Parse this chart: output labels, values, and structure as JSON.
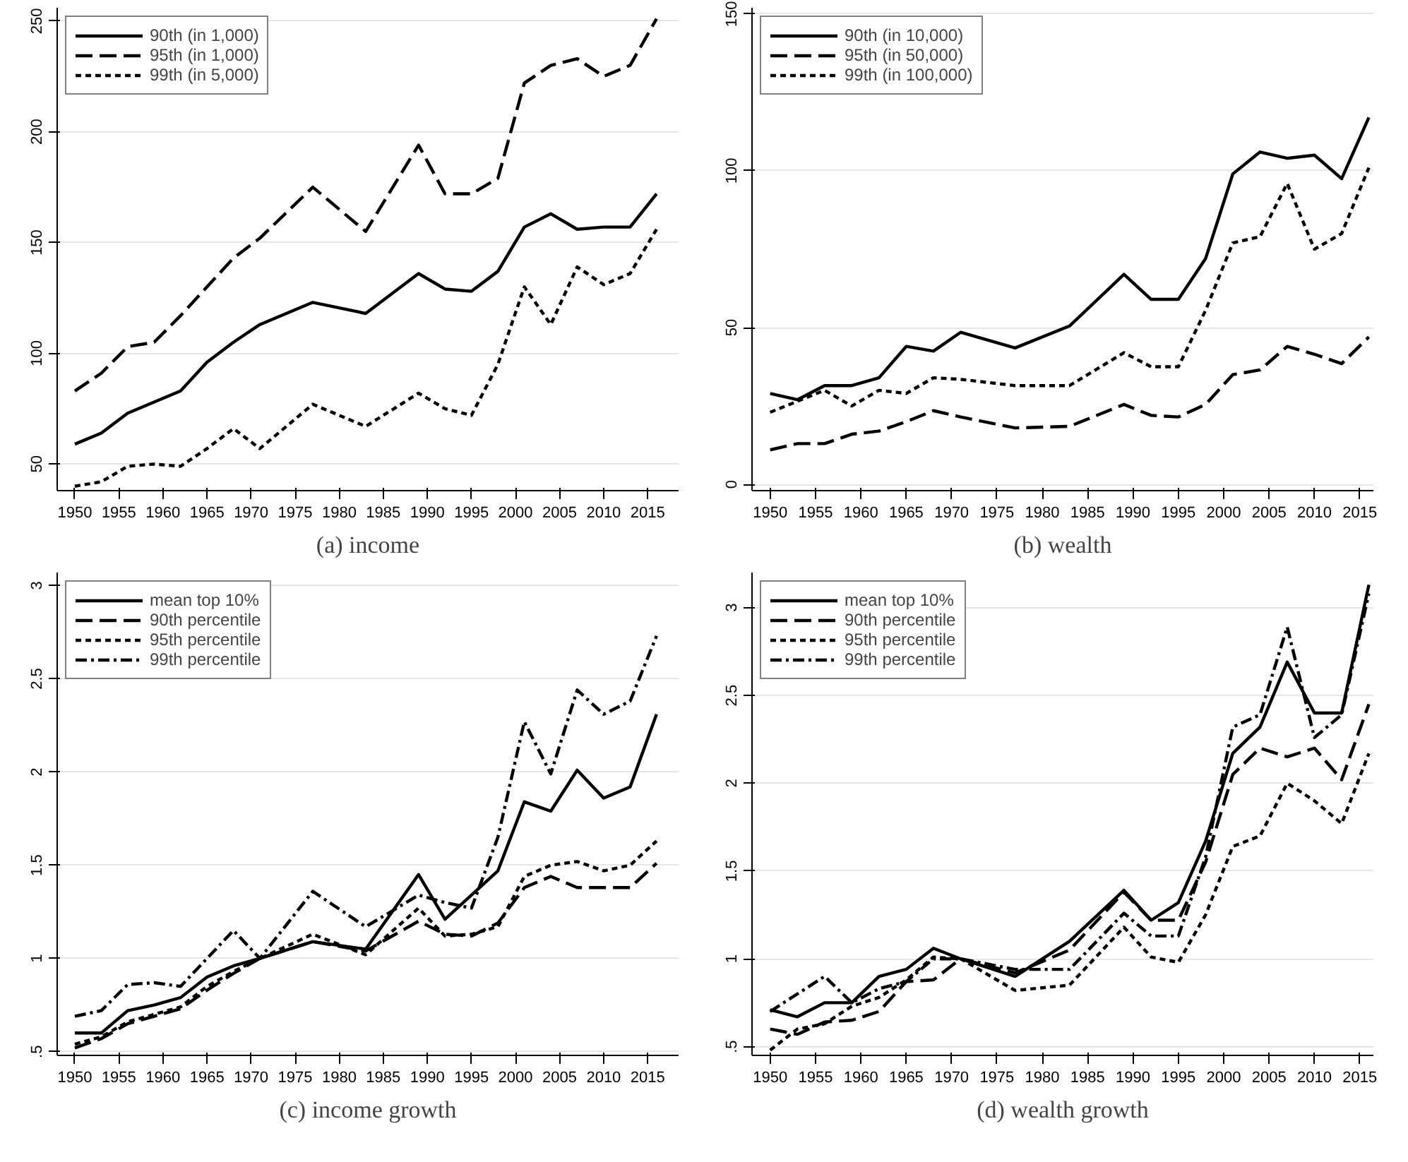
{
  "chart_data": [
    {
      "type": "line",
      "title": "(a) income",
      "x": [
        1950,
        1953,
        1956,
        1959,
        1962,
        1965,
        1968,
        1971,
        1977,
        1983,
        1989,
        1992,
        1995,
        1998,
        2001,
        2004,
        2007,
        2010,
        2013,
        2016
      ],
      "xlim": [
        1948,
        2018.5
      ],
      "xticks": [
        1950,
        1955,
        1960,
        1965,
        1970,
        1975,
        1980,
        1985,
        1990,
        1995,
        2000,
        2005,
        2010,
        2015
      ],
      "ylim": [
        38,
        256
      ],
      "yticks": [
        50,
        100,
        150,
        200,
        250
      ],
      "grid": "y",
      "legend": "top left",
      "series": [
        {
          "name": "90th (in 1,000)",
          "color": "#000000",
          "line_style": "solid",
          "values": [
            59,
            64,
            73,
            78,
            83,
            96,
            105,
            113,
            123,
            118,
            136,
            129,
            128,
            137,
            157,
            163,
            156,
            157,
            157,
            172
          ]
        },
        {
          "name": "95th (in 1,000)",
          "color": "#000000",
          "line_style": "dashed",
          "values": [
            83,
            91,
            103,
            105,
            117,
            130,
            143,
            152,
            175,
            155,
            194,
            172,
            172,
            179,
            222,
            230,
            233,
            225,
            230,
            251
          ]
        },
        {
          "name": "99th (in 5,000)",
          "color": "#000000",
          "line_style": "dotted",
          "values": [
            40,
            42,
            49,
            50,
            49,
            57,
            66,
            57,
            77,
            67,
            82,
            75,
            72,
            95,
            130,
            113,
            139,
            131,
            136,
            156
          ]
        }
      ]
    },
    {
      "type": "line",
      "title": "(b) wealth",
      "x": [
        1950,
        1953,
        1956,
        1959,
        1962,
        1965,
        1968,
        1971,
        1977,
        1983,
        1989,
        1992,
        1995,
        1998,
        2001,
        2004,
        2007,
        2010,
        2013,
        2016
      ],
      "xlim": [
        1948,
        2016.5
      ],
      "xticks": [
        1950,
        1955,
        1960,
        1965,
        1970,
        1975,
        1980,
        1985,
        1990,
        1995,
        2000,
        2005,
        2010,
        2015
      ],
      "ylim": [
        -2,
        152
      ],
      "yticks": [
        0,
        50,
        100,
        150
      ],
      "grid": "y",
      "legend": "top left",
      "series": [
        {
          "name": "90th (in 10,000)",
          "color": "#000000",
          "line_style": "solid",
          "values": [
            29,
            27,
            31.5,
            31.5,
            34,
            44,
            42.5,
            48.5,
            43.5,
            50.5,
            67,
            59,
            59,
            72,
            99,
            106,
            104,
            105,
            97.5,
            117
          ]
        },
        {
          "name": "95th (in 50,000)",
          "color": "#000000",
          "line_style": "dashed",
          "values": [
            11,
            13,
            13,
            16,
            17,
            20,
            23.5,
            21.5,
            18,
            18.5,
            25.5,
            22,
            21.5,
            25.5,
            35,
            36.5,
            44,
            41.5,
            38.5,
            47
          ]
        },
        {
          "name": "99th (in 100,000)",
          "color": "#000000",
          "line_style": "dotted",
          "values": [
            23,
            26.5,
            30,
            25,
            30,
            29,
            34,
            33.5,
            31.5,
            31.5,
            42,
            37.5,
            37.5,
            55.5,
            77,
            79,
            96,
            75,
            80,
            101
          ]
        }
      ]
    },
    {
      "type": "line",
      "title": "(c) income growth",
      "x": [
        1950,
        1953,
        1956,
        1959,
        1962,
        1965,
        1968,
        1971,
        1977,
        1983,
        1989,
        1992,
        1995,
        1998,
        2001,
        2004,
        2007,
        2010,
        2013,
        2016
      ],
      "xlim": [
        1948,
        2018.5
      ],
      "xticks": [
        1950,
        1955,
        1960,
        1965,
        1970,
        1975,
        1980,
        1985,
        1990,
        1995,
        2000,
        2005,
        2010,
        2015
      ],
      "ylim": [
        0.48,
        3.07
      ],
      "yticks": [
        {
          "value": 0.5,
          "label": ".5"
        },
        1,
        1.5,
        2,
        2.5,
        3
      ],
      "grid": "y",
      "legend": "top left",
      "series": [
        {
          "name": "mean top 10%",
          "color": "#000000",
          "line_style": "solid",
          "values": [
            0.6,
            0.6,
            0.72,
            0.75,
            0.79,
            0.9,
            0.96,
            1.0,
            1.09,
            1.05,
            1.45,
            1.21,
            1.34,
            1.47,
            1.84,
            1.79,
            2.01,
            1.86,
            1.92,
            2.31
          ]
        },
        {
          "name": "90th percentile",
          "color": "#000000",
          "line_style": "dashed",
          "values": [
            0.52,
            0.57,
            0.65,
            0.69,
            0.73,
            0.83,
            0.92,
            1.0,
            1.09,
            1.04,
            1.2,
            1.13,
            1.12,
            1.19,
            1.38,
            1.44,
            1.38,
            1.38,
            1.38,
            1.51
          ]
        },
        {
          "name": "95th percentile",
          "color": "#000000",
          "line_style": "dotted",
          "values": [
            0.54,
            0.58,
            0.66,
            0.7,
            0.74,
            0.85,
            0.93,
            1.0,
            1.13,
            1.02,
            1.27,
            1.12,
            1.13,
            1.17,
            1.44,
            1.5,
            1.52,
            1.47,
            1.5,
            1.63
          ]
        },
        {
          "name": "99th percentile",
          "color": "#000000",
          "line_style": "dashdot",
          "values": [
            0.69,
            0.72,
            0.86,
            0.87,
            0.85,
            1.0,
            1.15,
            1.0,
            1.36,
            1.17,
            1.34,
            1.3,
            1.27,
            1.65,
            2.27,
            1.99,
            2.44,
            2.31,
            2.38,
            2.73
          ]
        }
      ]
    },
    {
      "type": "line",
      "title": "(d) wealth growth",
      "x": [
        1950,
        1953,
        1956,
        1959,
        1962,
        1965,
        1968,
        1971,
        1977,
        1983,
        1989,
        1992,
        1995,
        1998,
        2001,
        2004,
        2007,
        2010,
        2013,
        2016
      ],
      "xlim": [
        1948,
        2016.5
      ],
      "xticks": [
        1950,
        1955,
        1960,
        1965,
        1970,
        1975,
        1980,
        1985,
        1990,
        1995,
        2000,
        2005,
        2010,
        2015
      ],
      "ylim": [
        0.45,
        3.2
      ],
      "yticks": [
        {
          "value": 0.5,
          "label": ".5"
        },
        1,
        1.5,
        2,
        2.5,
        3
      ],
      "grid": "y",
      "legend": "top left",
      "series": [
        {
          "name": "mean top 10%",
          "color": "#000000",
          "line_style": "solid",
          "values": [
            0.71,
            0.67,
            0.75,
            0.75,
            0.9,
            0.94,
            1.06,
            1.0,
            0.9,
            1.1,
            1.39,
            1.22,
            1.32,
            1.67,
            2.17,
            2.32,
            2.69,
            2.4,
            2.4,
            3.13
          ]
        },
        {
          "name": "90th percentile",
          "color": "#000000",
          "line_style": "dashed",
          "values": [
            0.6,
            0.57,
            0.64,
            0.65,
            0.7,
            0.87,
            0.88,
            1.0,
            0.92,
            1.05,
            1.38,
            1.22,
            1.22,
            1.55,
            2.05,
            2.2,
            2.15,
            2.2,
            2.02,
            2.45
          ]
        },
        {
          "name": "95th percentile",
          "color": "#000000",
          "line_style": "dotted",
          "values": [
            0.48,
            0.6,
            0.63,
            0.73,
            0.78,
            0.88,
            1.01,
            1.0,
            0.82,
            0.85,
            1.18,
            1.01,
            0.98,
            1.25,
            1.64,
            1.7,
            2.0,
            1.9,
            1.77,
            2.17
          ]
        },
        {
          "name": "99th percentile",
          "color": "#000000",
          "line_style": "dashdot",
          "values": [
            0.7,
            0.8,
            0.9,
            0.75,
            0.83,
            0.87,
            1.0,
            1.0,
            0.94,
            0.94,
            1.26,
            1.13,
            1.13,
            1.58,
            2.32,
            2.39,
            2.89,
            2.26,
            2.39,
            3.08
          ]
        }
      ]
    }
  ]
}
